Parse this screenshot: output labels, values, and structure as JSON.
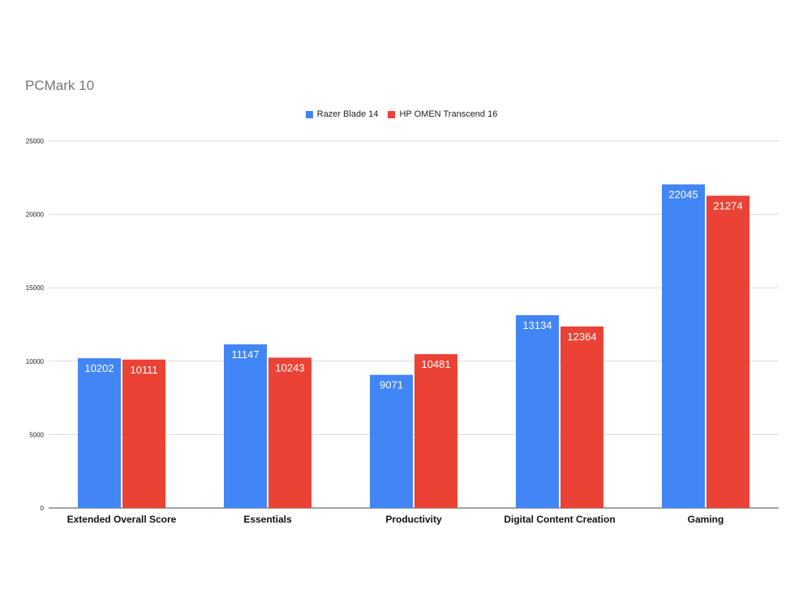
{
  "chart_data": {
    "type": "bar",
    "title": "PCMark 10",
    "categories": [
      "Extended Overall Score",
      "Essentials",
      "Productivity",
      "Digital Content Creation",
      "Gaming"
    ],
    "series": [
      {
        "name": "Razer Blade 14",
        "color": "#4285f4",
        "values": [
          10202,
          11147,
          9071,
          13134,
          22045
        ]
      },
      {
        "name": "HP OMEN Transcend 16",
        "color": "#ea4335",
        "values": [
          10111,
          10243,
          10481,
          12364,
          21274
        ]
      }
    ],
    "ylim": [
      0,
      25000
    ],
    "yticks": [
      0,
      5000,
      10000,
      15000,
      20000,
      25000
    ],
    "grid": true,
    "legend_position": "top-center",
    "data_labels": true
  }
}
